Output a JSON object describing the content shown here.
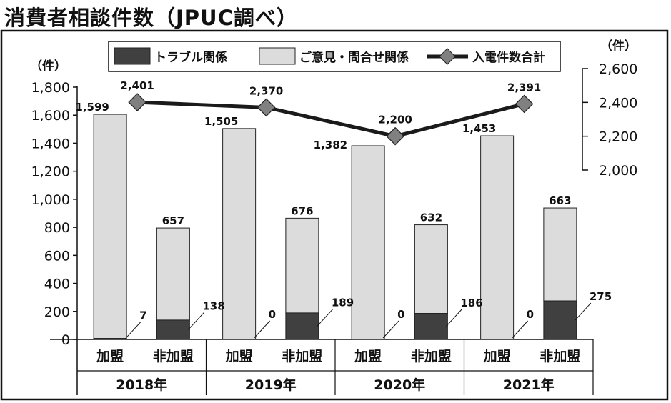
{
  "title": "消費者相談件数（JPUC調べ）",
  "colors": {
    "trouble": "#404040",
    "opinion": "#dcdcdc",
    "line": "#1a1a1a",
    "marker": "#808080",
    "frame": "#111111"
  },
  "chart_data": {
    "type": "bar",
    "stacked": true,
    "left_axis": {
      "unit": "（件）",
      "ylim": [
        0,
        1800
      ],
      "ticks": [
        "0",
        "200",
        "400",
        "600",
        "800",
        "1,000",
        "1,200",
        "1,400",
        "1,600",
        "1,800"
      ]
    },
    "right_axis": {
      "unit": "（件）",
      "ylim": [
        2000,
        2600
      ],
      "ticks": [
        "2,000",
        "2,200",
        "2,400",
        "2,600"
      ]
    },
    "legend": [
      {
        "label": "トラブル関係",
        "marker": "box",
        "color": "#404040"
      },
      {
        "label": "ご意見・問合せ関係",
        "marker": "box",
        "color": "#dcdcdc"
      },
      {
        "label": "入電件数合計",
        "marker": "line",
        "color": "#1a1a1a"
      }
    ],
    "legend_position": "top",
    "groups": [
      {
        "year": "2018年",
        "bars": [
          {
            "category": "加盟",
            "trouble": 7,
            "opinion": 1599,
            "trouble_label": "7",
            "opinion_label": "1,599"
          },
          {
            "category": "非加盟",
            "trouble": 138,
            "opinion": 657,
            "trouble_label": "138",
            "opinion_label": "657"
          }
        ],
        "total": 2401,
        "total_label": "2,401"
      },
      {
        "year": "2019年",
        "bars": [
          {
            "category": "加盟",
            "trouble": 0,
            "opinion": 1505,
            "trouble_label": "0",
            "opinion_label": "1,505"
          },
          {
            "category": "非加盟",
            "trouble": 189,
            "opinion": 676,
            "trouble_label": "189",
            "opinion_label": "676"
          }
        ],
        "total": 2370,
        "total_label": "2,370"
      },
      {
        "year": "2020年",
        "bars": [
          {
            "category": "加盟",
            "trouble": 0,
            "opinion": 1382,
            "trouble_label": "0",
            "opinion_label": "1,382"
          },
          {
            "category": "非加盟",
            "trouble": 186,
            "opinion": 632,
            "trouble_label": "186",
            "opinion_label": "632"
          }
        ],
        "total": 2200,
        "total_label": "2,200"
      },
      {
        "year": "2021年",
        "bars": [
          {
            "category": "加盟",
            "trouble": 0,
            "opinion": 1453,
            "trouble_label": "0",
            "opinion_label": "1,453"
          },
          {
            "category": "非加盟",
            "trouble": 275,
            "opinion": 663,
            "trouble_label": "275",
            "opinion_label": "663"
          }
        ],
        "total": 2391,
        "total_label": "2,391"
      }
    ]
  }
}
